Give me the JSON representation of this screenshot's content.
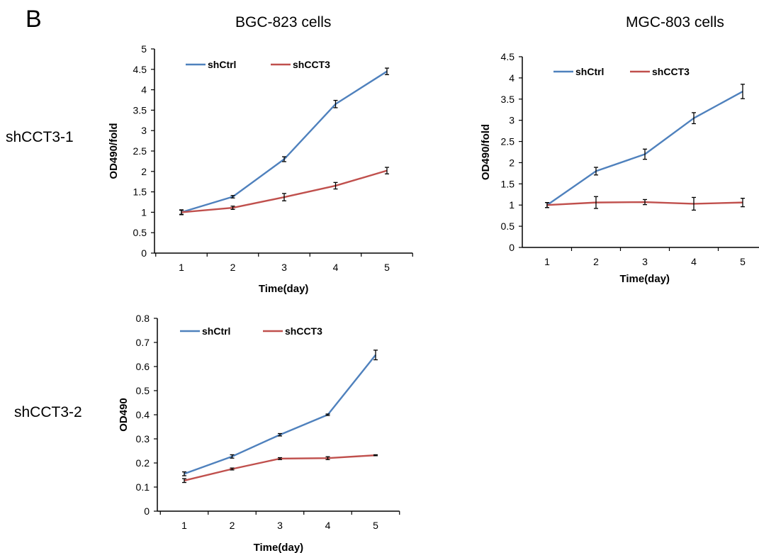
{
  "figure": {
    "panel_letter": "B",
    "column_titles": [
      "BGC-823 cells",
      "MGC-803 cells"
    ],
    "row_labels": [
      "shCCT3-1",
      "shCCT3-2"
    ]
  },
  "chart_data": [
    {
      "type": "line",
      "x": [
        1,
        2,
        3,
        4,
        5
      ],
      "xlabel": "Time(day)",
      "ylabel": "OD490/fold",
      "ylim": [
        0,
        5
      ],
      "yticks": [
        0,
        0.5,
        1,
        1.5,
        2,
        2.5,
        3,
        3.5,
        4,
        4.5,
        5
      ],
      "yticklabels": [
        "0",
        "0.5",
        "1",
        "1.5",
        "2",
        "2.5",
        "3",
        "3.5",
        "4",
        "4.5",
        "5"
      ],
      "legend": "top",
      "series": [
        {
          "name": "shCtrl",
          "color": "#4f81bd",
          "values": [
            1.0,
            1.38,
            2.3,
            3.65,
            4.45
          ],
          "errors": [
            0.05,
            0.03,
            0.06,
            0.09,
            0.08
          ]
        },
        {
          "name": "shCCT3",
          "color": "#c0504d",
          "values": [
            1.0,
            1.11,
            1.37,
            1.65,
            2.02
          ],
          "errors": [
            0.06,
            0.04,
            0.09,
            0.08,
            0.08
          ]
        }
      ]
    },
    {
      "type": "line",
      "x": [
        1,
        2,
        3,
        4,
        5
      ],
      "xlabel": "Time(day)",
      "ylabel": "OD490/fold",
      "ylim": [
        0,
        4.5
      ],
      "yticks": [
        0,
        0.5,
        1,
        1.5,
        2,
        2.5,
        3,
        3.5,
        4,
        4.5
      ],
      "yticklabels": [
        "0",
        "0.5",
        "1",
        "1.5",
        "2",
        "2.5",
        "3",
        "3.5",
        "4",
        "4.5"
      ],
      "legend": "top",
      "series": [
        {
          "name": "shCtrl",
          "color": "#4f81bd",
          "values": [
            1.0,
            1.8,
            2.2,
            3.05,
            3.68
          ],
          "errors": [
            0.06,
            0.09,
            0.12,
            0.13,
            0.17
          ]
        },
        {
          "name": "shCCT3",
          "color": "#c0504d",
          "values": [
            1.0,
            1.06,
            1.07,
            1.03,
            1.06
          ],
          "errors": [
            0.06,
            0.14,
            0.06,
            0.15,
            0.1
          ]
        }
      ]
    },
    {
      "type": "line",
      "x": [
        1,
        2,
        3,
        4,
        5
      ],
      "xlabel": "Time(day)",
      "ylabel": "OD490",
      "ylim": [
        0,
        0.8
      ],
      "yticks": [
        0,
        0.1,
        0.2,
        0.3,
        0.4,
        0.5,
        0.6,
        0.7,
        0.8
      ],
      "yticklabels": [
        "0",
        "0.1",
        "0.2",
        "0.3",
        "0.4",
        "0.5",
        "0.6",
        "0.7",
        "0.8"
      ],
      "legend": "top",
      "series": [
        {
          "name": "shCtrl",
          "color": "#4f81bd",
          "values": [
            0.155,
            0.227,
            0.317,
            0.4,
            0.648
          ],
          "errors": [
            0.008,
            0.007,
            0.005,
            0.003,
            0.02
          ]
        },
        {
          "name": "shCCT3",
          "color": "#c0504d",
          "values": [
            0.127,
            0.175,
            0.218,
            0.22,
            0.232
          ],
          "errors": [
            0.008,
            0.004,
            0.004,
            0.006,
            0.002
          ]
        }
      ]
    }
  ]
}
